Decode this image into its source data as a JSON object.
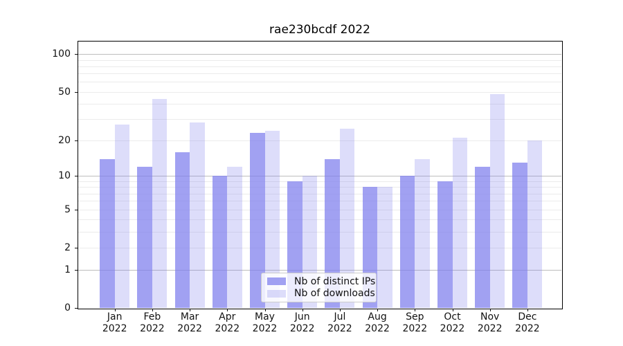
{
  "title": "rae230bcdf 2022",
  "chart_data": {
    "type": "bar",
    "title": "rae230bcdf 2022",
    "categories": [
      "Jan 2022",
      "Feb 2022",
      "Mar 2022",
      "Apr 2022",
      "May 2022",
      "Jun 2022",
      "Jul 2022",
      "Aug 2022",
      "Sep 2022",
      "Oct 2022",
      "Nov 2022",
      "Dec 2022"
    ],
    "series": [
      {
        "name": "Nb of distinct IPs",
        "color": "rgba(125,125,237,0.72)",
        "values": [
          14,
          12,
          16,
          10,
          23,
          9,
          14,
          8,
          10,
          9,
          12,
          13
        ]
      },
      {
        "name": "Nb of downloads",
        "color": "rgba(125,125,237,0.26)",
        "values": [
          27,
          44,
          28,
          12,
          24,
          10,
          25,
          8,
          14,
          21,
          48,
          20
        ]
      }
    ],
    "yscale": "log10(value+1)",
    "ylim": [
      0,
      126
    ],
    "yticks": [
      100,
      50,
      20,
      10,
      5,
      2,
      1,
      0
    ],
    "major_gridlines": [
      1,
      10,
      100
    ],
    "minor_gridlines": [
      2,
      3,
      4,
      5,
      6,
      7,
      8,
      9,
      20,
      30,
      40,
      50,
      60,
      70,
      80,
      90
    ],
    "grid": true,
    "legend_position": "lower center"
  },
  "colors": {
    "bar_ips": "rgba(125,125,237,0.72)",
    "bar_downloads": "rgba(125,125,237,0.26)",
    "major_grid": "#bdbdbd",
    "minor_grid": "#ebebeb",
    "spine": "#000000"
  }
}
